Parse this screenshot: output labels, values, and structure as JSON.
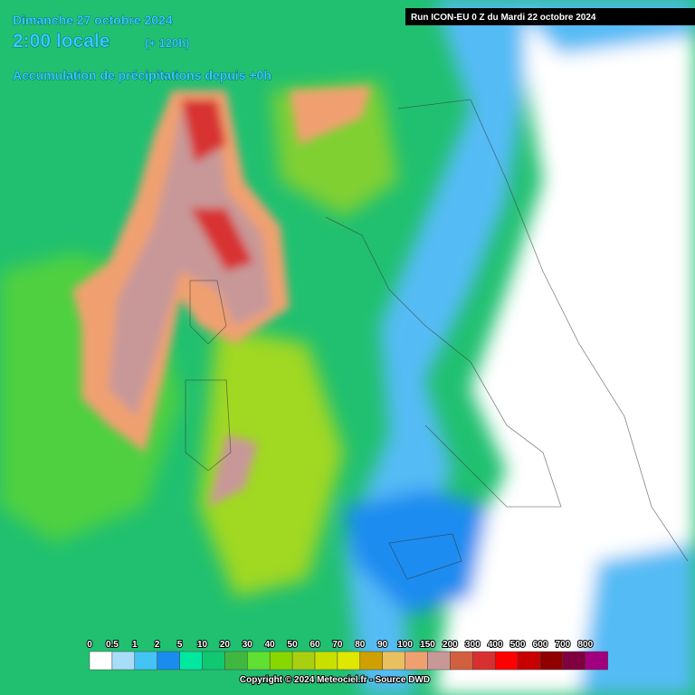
{
  "header": {
    "day": "Dimanche 27 octobre 2024",
    "time": "2:00 locale",
    "offset": "(+ 120h)",
    "subtitle": "Accumulation de précipitations depuis +0h",
    "run": "Run ICON-EU 0 Z du Mardi 22 octobre 2024"
  },
  "legend": {
    "items": [
      {
        "label": "0",
        "color": "#ffffff"
      },
      {
        "label": "0.5",
        "color": "#a8ddf8"
      },
      {
        "label": "1",
        "color": "#44c4f4"
      },
      {
        "label": "2",
        "color": "#1a8cf0"
      },
      {
        "label": "5",
        "color": "#00e8a0"
      },
      {
        "label": "10",
        "color": "#10c870"
      },
      {
        "label": "20",
        "color": "#40b840"
      },
      {
        "label": "30",
        "color": "#60e030"
      },
      {
        "label": "40",
        "color": "#88d800"
      },
      {
        "label": "50",
        "color": "#a8d010"
      },
      {
        "label": "60",
        "color": "#c8e000"
      },
      {
        "label": "70",
        "color": "#e0e800"
      },
      {
        "label": "80",
        "color": "#d0a000"
      },
      {
        "label": "90",
        "color": "#e8c060"
      },
      {
        "label": "100",
        "color": "#f0a070"
      },
      {
        "label": "150",
        "color": "#c89898"
      },
      {
        "label": "200",
        "color": "#d06040"
      },
      {
        "label": "300",
        "color": "#d83030"
      },
      {
        "label": "400",
        "color": "#ff0000"
      },
      {
        "label": "500",
        "color": "#c80000"
      },
      {
        "label": "600",
        "color": "#900000"
      },
      {
        "label": "700",
        "color": "#800040"
      },
      {
        "label": "800",
        "color": "#a00080"
      }
    ]
  },
  "footer": {
    "copyright": "Copyright © 2024 Meteociel.fr - Source DWD"
  }
}
